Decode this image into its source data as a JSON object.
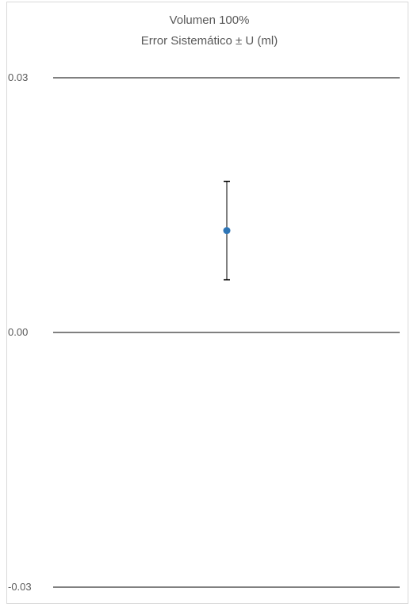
{
  "chart_data": {
    "type": "scatter",
    "title": "Volumen 100%",
    "subtitle": "Error Sistemático ± U (ml)",
    "xlabel": "",
    "ylabel": "",
    "ylim": [
      -0.03,
      0.03
    ],
    "y_ticks": [
      {
        "value": 0.03,
        "label": "0.03"
      },
      {
        "value": 0.0,
        "label": "0.00"
      },
      {
        "value": -0.03,
        "label": "-0.03"
      }
    ],
    "grid": true,
    "legend": "none",
    "points": [
      {
        "x": 1,
        "y": 0.012,
        "err_low": 0.0058,
        "err_high": 0.0058
      }
    ],
    "colors": {
      "point": "#2e75b6",
      "error_bar": "#000000",
      "gridline": "#000000",
      "text": "#595959",
      "frame": "#d9d9d9"
    }
  }
}
